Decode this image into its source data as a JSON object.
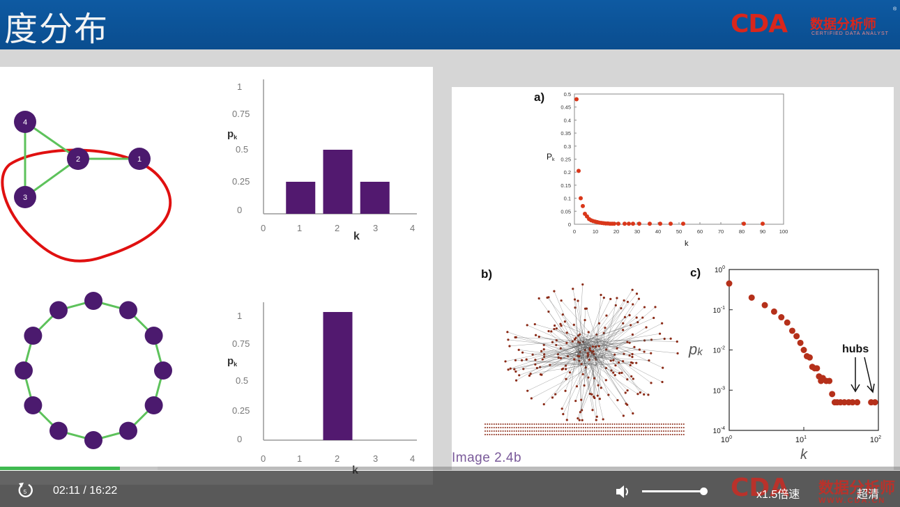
{
  "header": {
    "title": "度分布"
  },
  "logo": {
    "mark": "CDA",
    "name": "数据分析师",
    "tagline": "CERTIFIED DATA ANALYST",
    "reg": "®"
  },
  "left_panel": {
    "graph1": {
      "nodes": [
        "4",
        "2",
        "1",
        "3"
      ]
    },
    "chart1": {
      "ylabel": "p",
      "ylabel_sub": "k",
      "xlabel": "k",
      "yticks": [
        "1",
        "0.75",
        "0.5",
        "0.25",
        "0"
      ],
      "xticks": [
        "0",
        "1",
        "2",
        "3",
        "4"
      ]
    },
    "chart2": {
      "ylabel": "p",
      "ylabel_sub": "k",
      "xlabel": "k",
      "yticks": [
        "1",
        "0.75",
        "0.5",
        "0.25",
        "0"
      ],
      "xticks": [
        "0",
        "1",
        "2",
        "3",
        "4"
      ]
    }
  },
  "right_panel": {
    "panel_a": {
      "label": "a)",
      "ylabel": "P",
      "ylabel_sub": "k",
      "xlabel": "k",
      "yticks": [
        "0.5",
        "0.45",
        "0.4",
        "0.35",
        "0.3",
        "0.25",
        "0.2",
        "0.15",
        "0.1",
        "0.05",
        "0"
      ],
      "xticks": [
        "0",
        "10",
        "20",
        "30",
        "40",
        "50",
        "60",
        "70",
        "80",
        "90",
        "100"
      ]
    },
    "panel_b": {
      "label": "b)"
    },
    "panel_c": {
      "label": "c)",
      "ylabel": "p",
      "ylabel_sub": "k",
      "xlabel": "k",
      "hubs_label": "hubs",
      "yticks": [
        "10",
        "10",
        "10",
        "10",
        "10"
      ],
      "yexp": [
        "0",
        "-1",
        "-2",
        "-3",
        "-4"
      ],
      "xticks": [
        "10",
        "10",
        "10"
      ],
      "xexp": [
        "0",
        "1",
        "2"
      ]
    },
    "caption": "Image 2.4b"
  },
  "player": {
    "time_current": "02:11",
    "time_separator": "/",
    "time_total": "16:22",
    "speed": "x1.5倍速",
    "quality": "超清",
    "progress_fraction": 0.133,
    "volume_fraction": 0.99,
    "watermark_mark": "CDA",
    "watermark_name": "数据分析师",
    "watermark_url": "WWW.CDA.CN"
  },
  "colors": {
    "header": "#0e5aa2",
    "node": "#4b1a6e",
    "edge": "#5dc25b",
    "circle": "#e01010",
    "bar": "#52196f",
    "point": "#d9371a",
    "progress": "#3fb950"
  },
  "chart_data": [
    {
      "type": "bar",
      "categories": [
        "1",
        "2",
        "3"
      ],
      "values": [
        0.25,
        0.5,
        0.25
      ],
      "xlabel": "k",
      "ylabel": "pk",
      "xlim": [
        0,
        4
      ],
      "ylim": [
        0,
        1
      ]
    },
    {
      "type": "bar",
      "categories": [
        "2"
      ],
      "values": [
        1.0
      ],
      "xlabel": "k",
      "ylabel": "pk",
      "xlim": [
        0,
        4
      ],
      "ylim": [
        0,
        1
      ]
    },
    {
      "type": "scatter",
      "xlabel": "k",
      "ylabel": "Pk",
      "xlim": [
        0,
        100
      ],
      "ylim": [
        0,
        0.5
      ],
      "x": [
        1,
        2,
        3,
        4,
        5,
        6,
        7,
        8,
        9,
        10,
        11,
        12,
        13,
        14,
        15,
        16,
        17,
        18,
        19,
        21,
        24,
        26,
        28,
        31,
        36,
        41,
        46,
        52,
        81,
        90
      ],
      "y": [
        0.48,
        0.205,
        0.1,
        0.07,
        0.04,
        0.03,
        0.02,
        0.015,
        0.012,
        0.01,
        0.008,
        0.006,
        0.005,
        0.004,
        0.003,
        0.003,
        0.002,
        0.002,
        0.002,
        0.002,
        0.002,
        0.002,
        0.002,
        0.002,
        0.002,
        0.002,
        0.002,
        0.002,
        0.002,
        0.002
      ]
    },
    {
      "type": "scatter",
      "scale": "log-log",
      "xlabel": "k",
      "ylabel": "pk",
      "xlim": [
        1,
        100
      ],
      "ylim": [
        0.0001,
        1
      ],
      "x": [
        1,
        2,
        3,
        4,
        5,
        6,
        7,
        8,
        9,
        10,
        11,
        12,
        13,
        14,
        15,
        16,
        17,
        18,
        20,
        22,
        24,
        26,
        28,
        31,
        35,
        40,
        45,
        52,
        80,
        90
      ],
      "y": [
        0.45,
        0.2,
        0.13,
        0.09,
        0.065,
        0.048,
        0.03,
        0.022,
        0.015,
        0.01,
        0.007,
        0.0065,
        0.0038,
        0.0035,
        0.0035,
        0.0022,
        0.0017,
        0.002,
        0.0017,
        0.0017,
        0.0008,
        0.0005,
        0.0005,
        0.0005,
        0.0005,
        0.0005,
        0.0005,
        0.0005,
        0.0005,
        0.0005
      ]
    }
  ]
}
